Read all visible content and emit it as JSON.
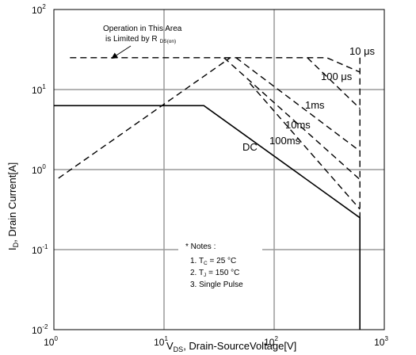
{
  "chart_data": {
    "type": "line",
    "title": "",
    "x_scale": "log",
    "y_scale": "log",
    "xlim": [
      1,
      1000
    ],
    "ylim": [
      0.01,
      100
    ],
    "grid": true,
    "x_ticks": [
      {
        "base": "10",
        "exp": "0"
      },
      {
        "base": "10",
        "exp": "1"
      },
      {
        "base": "10",
        "exp": "2"
      },
      {
        "base": "10",
        "exp": "3"
      }
    ],
    "y_ticks": [
      {
        "base": "10",
        "exp": "-2"
      },
      {
        "base": "10",
        "exp": "-1"
      },
      {
        "base": "10",
        "exp": "0"
      },
      {
        "base": "10",
        "exp": "1"
      },
      {
        "base": "10",
        "exp": "2"
      }
    ],
    "xlabel": {
      "main": "V",
      "sub": "DS",
      "rest": ", Drain-SourceVoltage[V]"
    },
    "ylabel": {
      "main": "I",
      "sub": "D",
      "rest": ", Drain Current[A]"
    },
    "series": [
      {
        "name": "10 µs",
        "label_text": "10 μs",
        "style": "dashed",
        "points": [
          [
            1.4,
            25
          ],
          [
            300,
            25
          ],
          [
            600,
            16.5
          ]
        ]
      },
      {
        "name": "100 µs",
        "label_text": "100 μs",
        "style": "dashed",
        "points": [
          [
            200,
            25
          ],
          [
            600,
            5.8
          ]
        ]
      },
      {
        "name": "1ms",
        "label_text": "1ms",
        "style": "dashed",
        "points": [
          [
            45,
            25
          ],
          [
            600,
            1.7
          ]
        ]
      },
      {
        "name": "10ms",
        "label_text": "10ms",
        "style": "dashed",
        "points": [
          [
            35,
            25
          ],
          [
            600,
            0.75
          ]
        ]
      },
      {
        "name": "100ms",
        "label_text": "100ms",
        "style": "dashed",
        "points": [
          [
            60,
            12
          ],
          [
            600,
            0.32
          ]
        ]
      },
      {
        "name": "DC",
        "label_text": "DC",
        "style": "solid",
        "points": [
          [
            1,
            6.3
          ],
          [
            23,
            6.3
          ],
          [
            600,
            0.25
          ],
          [
            600,
            0.01
          ]
        ]
      }
    ],
    "rds_limit_line": {
      "style": "dashed",
      "points": [
        [
          1.1,
          0.78
        ],
        [
          40,
          25
        ]
      ]
    },
    "vdss_limit_line": {
      "style": "dashed",
      "points": [
        [
          600,
          25
        ],
        [
          600,
          0.25
        ]
      ]
    },
    "annotations": {
      "rds_line1": "Operation in This Area",
      "rds_line2_main": "is Limited by R",
      "rds_line2_sub": "DS(on)",
      "notes_title": "* Notes :",
      "note1_main": "1. T",
      "note1_sub": "C",
      "note1_rest": " = 25 °C",
      "note2_main": "2. T",
      "note2_sub": "J",
      "note2_rest": " = 150 °C",
      "note3": "3. Single Pulse"
    }
  }
}
